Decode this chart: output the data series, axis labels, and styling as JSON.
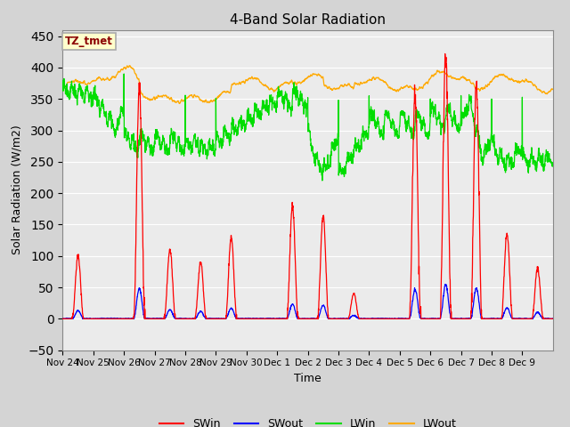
{
  "title": "4-Band Solar Radiation",
  "xlabel": "Time",
  "ylabel": "Solar Radiation (W/m2)",
  "ylim": [
    -50,
    460
  ],
  "yticks": [
    -50,
    0,
    50,
    100,
    150,
    200,
    250,
    300,
    350,
    400,
    450
  ],
  "annotation_text": "TZ_tmet",
  "annotation_color": "#8B0000",
  "annotation_bg": "#ffffcc",
  "annotation_border": "#aaaaaa",
  "colors": {
    "SWin": "#ff0000",
    "SWout": "#0000ff",
    "LWin": "#00dd00",
    "LWout": "#ffaa00"
  },
  "x_tick_labels": [
    "Nov 24",
    "Nov 25",
    "Nov 26",
    "Nov 27",
    "Nov 28",
    "Nov 29",
    "Nov 30",
    "Dec 1",
    "Dec 2",
    "Dec 3",
    "Dec 4",
    "Dec 5",
    "Dec 6",
    "Dec 7",
    "Dec 8",
    "Dec 9"
  ],
  "n_days": 16,
  "swin_peaks": [
    100,
    0,
    370,
    110,
    90,
    130,
    0,
    180,
    165,
    40,
    0,
    360,
    420,
    375,
    135,
    80
  ],
  "swout_ratio": 0.13
}
